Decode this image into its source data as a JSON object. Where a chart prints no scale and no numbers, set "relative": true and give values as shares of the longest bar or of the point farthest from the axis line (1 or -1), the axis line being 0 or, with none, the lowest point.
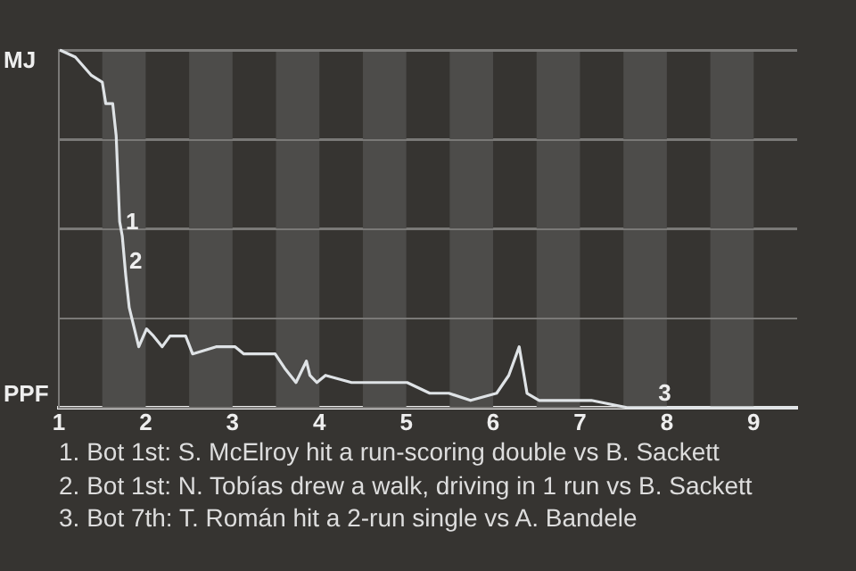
{
  "chart_data": {
    "type": "line",
    "relative": true,
    "x": [
      1.01,
      1.19,
      1.37,
      1.5,
      1.54,
      1.62,
      1.66,
      1.7,
      1.73,
      1.77,
      1.81,
      1.85,
      1.92,
      2.01,
      2.09,
      2.19,
      2.28,
      2.46,
      2.54,
      2.81,
      3.03,
      3.13,
      3.49,
      3.6,
      3.73,
      3.85,
      3.89,
      3.97,
      4.07,
      4.37,
      4.91,
      5.01,
      5.27,
      5.49,
      5.74,
      6.04,
      6.18,
      6.3,
      6.39,
      6.53,
      7.13,
      7.54,
      9.5
    ],
    "series": [
      {
        "color": "#dfe3e6",
        "values": [
          1,
          0.98,
          0.93,
          0.91,
          0.85,
          0.85,
          0.76,
          0.52,
          0.48,
          0.37,
          0.28,
          0.24,
          0.17,
          0.22,
          0.2,
          0.17,
          0.2,
          0.2,
          0.15,
          0.17,
          0.17,
          0.15,
          0.15,
          0.11,
          0.07,
          0.13,
          0.09,
          0.07,
          0.09,
          0.07,
          0.07,
          0.07,
          0.04,
          0.04,
          0.02,
          0.04,
          0.09,
          0.17,
          0.04,
          0.02,
          0.02,
          0,
          0
        ]
      }
    ],
    "xlim": [
      1,
      9.5
    ],
    "xticks": [
      1,
      2,
      3,
      4,
      5,
      6,
      7,
      8,
      9
    ],
    "grid": "y",
    "legend": false,
    "marker": "none",
    "line_style": "solid",
    "bands": [
      {
        "axis": "x",
        "from": 1.5,
        "to": 2,
        "color": "#4d4c4a"
      },
      {
        "axis": "x",
        "from": 2.5,
        "to": 3,
        "color": "#4d4c4a"
      },
      {
        "axis": "x",
        "from": 3.5,
        "to": 4,
        "color": "#4d4c4a"
      },
      {
        "axis": "x",
        "from": 4.5,
        "to": 5,
        "color": "#4d4c4a"
      },
      {
        "axis": "x",
        "from": 5.5,
        "to": 6,
        "color": "#4d4c4a"
      },
      {
        "axis": "x",
        "from": 6.5,
        "to": 7,
        "color": "#4d4c4a"
      },
      {
        "axis": "x",
        "from": 7.5,
        "to": 8,
        "color": "#4d4c4a"
      },
      {
        "axis": "x",
        "from": 8.5,
        "to": 9,
        "color": "#4d4c4a"
      }
    ],
    "annotations": [
      "MJ",
      "PPF",
      {
        "text": "1",
        "x": 1.73,
        "y": 0.48
      },
      {
        "text": "2",
        "x": 1.77,
        "y": 0.37
      },
      {
        "text": "3",
        "x": 7.86,
        "y": 0
      },
      "1. Bot 1st: S. McElroy hit a run-scoring double vs B. Sackett",
      "2. Bot 1st: N. Tobías drew a walk, driving in 1 run vs B. Sackett",
      "3. Bot 7th: T. Román hit a 2-run single vs A. Bandele"
    ]
  }
}
